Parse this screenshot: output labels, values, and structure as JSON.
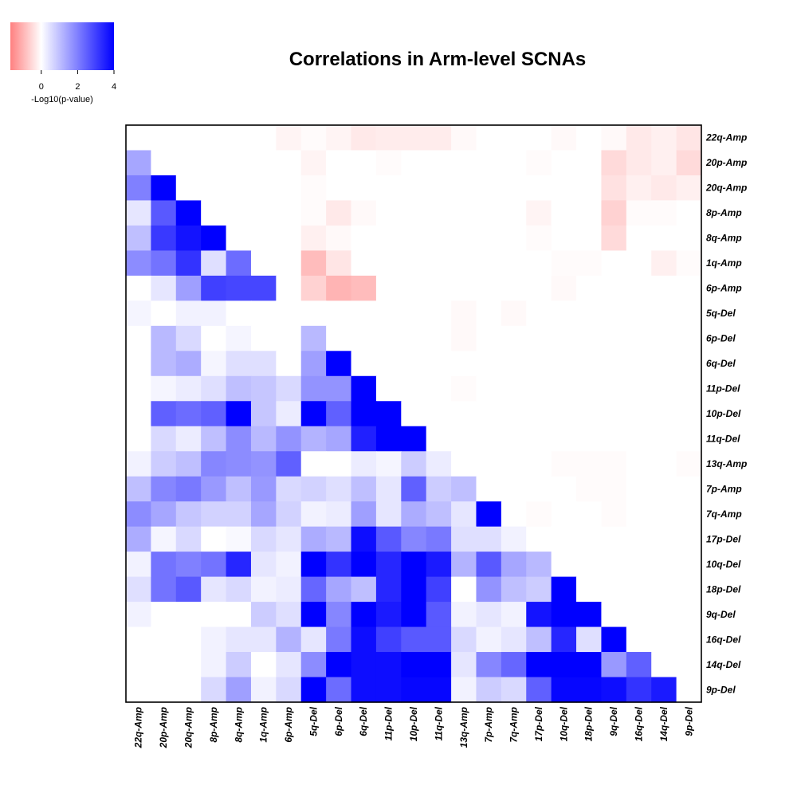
{
  "chart_data": {
    "type": "heatmap",
    "title": "Correlations in Arm-level SCNAs",
    "legend": {
      "label": "-Log10(p-value)",
      "ticks": [
        "0",
        "2",
        "4"
      ],
      "tick_values": [
        0,
        2,
        4
      ],
      "range": [
        -1.7,
        4
      ],
      "low_color": "#ff8080",
      "mid_color": "#ffffff",
      "high_color": "#0000ff"
    },
    "columns": [
      "22q-Amp",
      "20p-Amp",
      "20q-Amp",
      "8p-Amp",
      "8q-Amp",
      "1q-Amp",
      "6p-Amp",
      "5q-Del",
      "6p-Del",
      "6q-Del",
      "11p-Del",
      "10p-Del",
      "11q-Del",
      "13q-Amp",
      "7p-Amp",
      "7q-Amp",
      "17p-Del",
      "10q-Del",
      "18p-Del",
      "9q-Del",
      "16q-Del",
      "14q-Del",
      "9p-Del"
    ],
    "rows": [
      "22q-Amp",
      "20p-Amp",
      "20q-Amp",
      "8p-Amp",
      "8q-Amp",
      "1q-Amp",
      "6p-Amp",
      "5q-Del",
      "6p-Del",
      "6q-Del",
      "11p-Del",
      "10p-Del",
      "11q-Del",
      "13q-Amp",
      "7p-Amp",
      "7q-Amp",
      "17p-Del",
      "10q-Del",
      "18p-Del",
      "9q-Del",
      "16q-Del",
      "14q-Del",
      "9p-Del"
    ],
    "values": [
      [
        0,
        0,
        0,
        0,
        0,
        0,
        -0.15,
        -0.05,
        -0.15,
        -0.3,
        -0.25,
        -0.25,
        -0.25,
        -0.08,
        0,
        0,
        0,
        -0.08,
        0,
        -0.08,
        -0.3,
        -0.2,
        -0.35
      ],
      [
        1.4,
        0,
        0,
        0,
        0,
        0,
        0,
        -0.15,
        0,
        0,
        -0.05,
        0,
        0,
        0,
        0,
        0,
        -0.05,
        0,
        0,
        -0.5,
        -0.3,
        -0.2,
        -0.5
      ],
      [
        2,
        4,
        0,
        0,
        0,
        0,
        0,
        -0.05,
        0,
        0,
        0,
        0,
        0,
        0,
        0,
        0,
        0,
        0,
        0,
        -0.4,
        -0.2,
        -0.3,
        -0.2
      ],
      [
        0.4,
        2.6,
        4,
        0,
        0,
        0,
        0,
        -0.05,
        -0.3,
        -0.08,
        0,
        0,
        0,
        0,
        0,
        0,
        -0.15,
        0,
        0,
        -0.6,
        -0.05,
        -0.05,
        0
      ],
      [
        1,
        3.1,
        3.7,
        4,
        0,
        0,
        0,
        -0.2,
        -0.08,
        0,
        0,
        0,
        0,
        0,
        0,
        0,
        -0.05,
        0,
        0,
        -0.5,
        0,
        0,
        0
      ],
      [
        1.8,
        2.2,
        3.2,
        0.5,
        2.3,
        0,
        0,
        -0.9,
        -0.35,
        0,
        0,
        0,
        0,
        0,
        0,
        0,
        0,
        -0.05,
        -0.05,
        0,
        0,
        -0.2,
        -0.05
      ],
      [
        0,
        0.4,
        1.5,
        3,
        2.9,
        2.9,
        0,
        -0.6,
        -1.0,
        -0.9,
        0,
        0,
        0,
        0,
        0,
        0,
        0,
        -0.08,
        0,
        0,
        0,
        0,
        0
      ],
      [
        0.15,
        0,
        0.2,
        0.2,
        0,
        0,
        0,
        0,
        0,
        0,
        0,
        0,
        0,
        -0.08,
        0,
        -0.08,
        0,
        0,
        0,
        0,
        0,
        0,
        0
      ],
      [
        0,
        1.1,
        0.6,
        0,
        0.15,
        0,
        0,
        1.1,
        0,
        0,
        0,
        0,
        0,
        -0.08,
        0,
        0,
        0,
        0,
        0,
        0,
        0,
        0,
        0
      ],
      [
        0,
        1.1,
        1.3,
        0.15,
        0.5,
        0.5,
        0,
        1.5,
        4,
        0,
        0,
        0,
        0,
        0,
        0,
        0,
        0,
        0,
        0,
        0,
        0,
        0,
        0
      ],
      [
        0,
        0.15,
        0.3,
        0.5,
        1.0,
        0.9,
        0.6,
        1.7,
        1.7,
        4,
        0,
        0,
        0,
        -0.05,
        0,
        0,
        0,
        0,
        0,
        0,
        0,
        0,
        0
      ],
      [
        0,
        2.5,
        2.3,
        2.5,
        4,
        0.9,
        0.3,
        4,
        2.5,
        4,
        4,
        0,
        0,
        0,
        0,
        0,
        0,
        0,
        0,
        0,
        0,
        0,
        0
      ],
      [
        0,
        0.6,
        0.3,
        1,
        1.8,
        1.1,
        1.7,
        1.2,
        1.4,
        3.5,
        4,
        4,
        0,
        0,
        0,
        0,
        0,
        0,
        0,
        0,
        0,
        0,
        0
      ],
      [
        0.2,
        0.8,
        1.0,
        1.9,
        1.8,
        1.7,
        2.5,
        0,
        0,
        0.3,
        0.15,
        0.8,
        0.3,
        0,
        0,
        0,
        0,
        -0.05,
        -0.05,
        -0.05,
        0,
        0,
        -0.05
      ],
      [
        1,
        1.9,
        2.1,
        1.6,
        1.0,
        1.6,
        0.6,
        0.7,
        0.5,
        1.0,
        0.4,
        2.5,
        0.8,
        1.0,
        0,
        0,
        0,
        0,
        -0.05,
        -0.05,
        0,
        0,
        0
      ],
      [
        1.8,
        1.4,
        0.9,
        0.7,
        0.7,
        1.4,
        0.7,
        0.2,
        0.3,
        1.5,
        0.4,
        1.3,
        1.0,
        0.4,
        4,
        0,
        -0.05,
        0,
        0,
        -0.05,
        0,
        0,
        0
      ],
      [
        1.3,
        0.15,
        0.6,
        0,
        0.1,
        0.6,
        0.4,
        1.3,
        1.1,
        3.8,
        2.6,
        1.9,
        2.1,
        0.5,
        0.5,
        0.2,
        0,
        0,
        0,
        0,
        0,
        0,
        0
      ],
      [
        0.2,
        2.2,
        2.0,
        2.2,
        3.4,
        0.4,
        0.2,
        4,
        3.2,
        4,
        3.4,
        4,
        3.6,
        1.2,
        2.6,
        1.4,
        1.1,
        0,
        0,
        0,
        0,
        0,
        0
      ],
      [
        0.5,
        2.2,
        2.6,
        0.4,
        0.6,
        0.2,
        0.3,
        2.4,
        1.4,
        1.0,
        3.4,
        4,
        3,
        0,
        1.7,
        1.0,
        0.8,
        4,
        0,
        0,
        0,
        0,
        0
      ],
      [
        0.2,
        0,
        0,
        0,
        0,
        0.8,
        0.5,
        4,
        1.9,
        4,
        3.6,
        4,
        2.6,
        0.2,
        0.4,
        0.2,
        3.7,
        4,
        4,
        0,
        0,
        0,
        0
      ],
      [
        0,
        0,
        0,
        0.2,
        0.4,
        0.4,
        1.2,
        0.4,
        2.1,
        3.8,
        3,
        2.6,
        2.6,
        0.6,
        0.2,
        0.4,
        1.0,
        3.4,
        0.5,
        4,
        0,
        0,
        0
      ],
      [
        0,
        0,
        0,
        0.2,
        0.8,
        0,
        0.4,
        1.8,
        4,
        3.8,
        3.8,
        4,
        4,
        0.4,
        1.9,
        2.4,
        4,
        4,
        4,
        1.6,
        2.5,
        0,
        0
      ],
      [
        0,
        0,
        0,
        0.6,
        1.5,
        0.2,
        0.6,
        4,
        2.3,
        3.8,
        3.8,
        3.9,
        3.9,
        0.2,
        0.8,
        0.6,
        2.5,
        3.9,
        3.9,
        3.8,
        3.2,
        3.6,
        0
      ]
    ]
  }
}
